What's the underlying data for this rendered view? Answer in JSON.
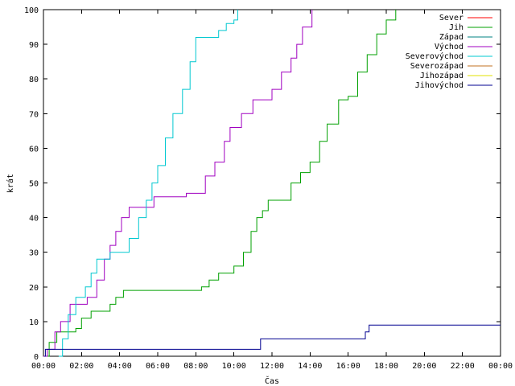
{
  "chart_data": {
    "type": "line",
    "title": "",
    "xlabel": "Čas",
    "ylabel": "krát",
    "xlim": [
      0,
      24
    ],
    "ylim": [
      0,
      100
    ],
    "x_unit": "hours",
    "x_tick_labels": [
      "00:00",
      "02:00",
      "04:00",
      "06:00",
      "08:00",
      "10:00",
      "12:00",
      "14:00",
      "16:00",
      "18:00",
      "20:00",
      "22:00",
      "00:00"
    ],
    "y_tick_labels": [
      "0",
      "10",
      "20",
      "30",
      "40",
      "50",
      "60",
      "70",
      "80",
      "90",
      "100"
    ],
    "grid": false,
    "legend_position": "top-right",
    "series": [
      {
        "name": "Sever",
        "color": "#ff0000",
        "points": []
      },
      {
        "name": "Jih",
        "color": "#00a000",
        "points": [
          [
            0.05,
            0
          ],
          [
            0.3,
            4
          ],
          [
            0.7,
            7
          ],
          [
            1.7,
            8
          ],
          [
            2.0,
            11
          ],
          [
            2.5,
            13
          ],
          [
            3.5,
            15
          ],
          [
            3.8,
            17
          ],
          [
            4.2,
            19
          ],
          [
            8.0,
            19
          ],
          [
            8.3,
            20
          ],
          [
            8.7,
            22
          ],
          [
            9.2,
            24
          ],
          [
            10.0,
            26
          ],
          [
            10.5,
            30
          ],
          [
            10.9,
            36
          ],
          [
            11.2,
            40
          ],
          [
            11.5,
            42
          ],
          [
            11.8,
            45
          ],
          [
            12.5,
            45
          ],
          [
            13.0,
            50
          ],
          [
            13.5,
            53
          ],
          [
            14.0,
            56
          ],
          [
            14.5,
            62
          ],
          [
            14.9,
            67
          ],
          [
            15.5,
            74
          ],
          [
            16.0,
            75
          ],
          [
            16.5,
            82
          ],
          [
            17.0,
            87
          ],
          [
            17.5,
            93
          ],
          [
            18.0,
            97
          ],
          [
            18.5,
            100
          ]
        ]
      },
      {
        "name": "Západ",
        "color": "#008080",
        "points": []
      },
      {
        "name": "Východ",
        "color": "#a000c0",
        "points": [
          [
            0.0,
            0
          ],
          [
            0.2,
            2
          ],
          [
            0.6,
            7
          ],
          [
            0.9,
            10
          ],
          [
            1.4,
            15
          ],
          [
            2.0,
            15
          ],
          [
            2.3,
            17
          ],
          [
            2.8,
            22
          ],
          [
            3.2,
            28
          ],
          [
            3.5,
            32
          ],
          [
            3.8,
            36
          ],
          [
            4.1,
            40
          ],
          [
            4.5,
            43
          ],
          [
            5.7,
            43
          ],
          [
            5.8,
            46
          ],
          [
            7.3,
            46
          ],
          [
            7.5,
            47
          ],
          [
            8.1,
            47
          ],
          [
            8.5,
            52
          ],
          [
            9.0,
            56
          ],
          [
            9.5,
            62
          ],
          [
            9.8,
            66
          ],
          [
            10.4,
            70
          ],
          [
            11.0,
            74
          ],
          [
            11.6,
            74
          ],
          [
            12.0,
            77
          ],
          [
            12.5,
            82
          ],
          [
            13.0,
            86
          ],
          [
            13.3,
            90
          ],
          [
            13.6,
            95
          ],
          [
            14.1,
            100
          ]
        ]
      },
      {
        "name": "Severovýchod",
        "color": "#00c8d0",
        "points": [
          [
            0.8,
            0
          ],
          [
            1.0,
            5
          ],
          [
            1.3,
            12
          ],
          [
            1.7,
            17
          ],
          [
            2.2,
            20
          ],
          [
            2.5,
            24
          ],
          [
            2.8,
            28
          ],
          [
            3.3,
            28
          ],
          [
            3.5,
            30
          ],
          [
            4.2,
            30
          ],
          [
            4.5,
            34
          ],
          [
            5.0,
            40
          ],
          [
            5.4,
            45
          ],
          [
            5.7,
            50
          ],
          [
            6.0,
            55
          ],
          [
            6.4,
            63
          ],
          [
            6.8,
            70
          ],
          [
            7.3,
            77
          ],
          [
            7.7,
            85
          ],
          [
            8.0,
            92
          ],
          [
            8.8,
            92
          ],
          [
            9.2,
            94
          ],
          [
            9.6,
            96
          ],
          [
            10.0,
            97
          ],
          [
            10.2,
            100
          ]
        ]
      },
      {
        "name": "Severozápad",
        "color": "#c07020",
        "points": []
      },
      {
        "name": "Jihozápad",
        "color": "#e0e000",
        "points": []
      },
      {
        "name": "Jihovýchod",
        "color": "#000090",
        "points": [
          [
            0.05,
            0
          ],
          [
            0.1,
            2
          ],
          [
            11.2,
            2
          ],
          [
            11.4,
            5
          ],
          [
            16.7,
            5
          ],
          [
            16.9,
            7
          ],
          [
            17.1,
            9
          ],
          [
            24.0,
            9
          ]
        ]
      }
    ]
  }
}
